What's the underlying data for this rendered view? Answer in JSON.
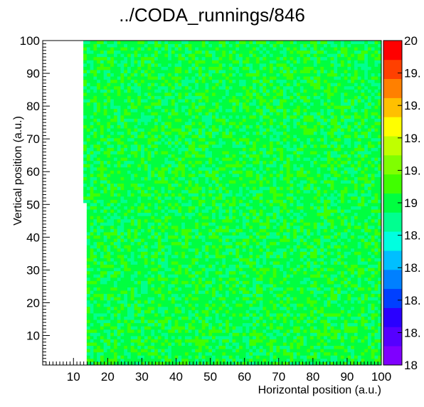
{
  "chart_data": {
    "type": "heatmap",
    "title": "../CODA_runnings/846",
    "xlabel": "Horizontal position (a.u.)",
    "ylabel": "Vertical position (a.u.)",
    "xlim": [
      1,
      100
    ],
    "ylim": [
      1,
      100
    ],
    "x_ticks": [
      "10",
      "20",
      "30",
      "40",
      "50",
      "60",
      "70",
      "80",
      "90",
      "100"
    ],
    "y_ticks": [
      "10",
      "20",
      "30",
      "40",
      "50",
      "60",
      "70",
      "80",
      "90",
      "100"
    ],
    "zlim": [
      18,
      20
    ],
    "z_ticks": [
      "18",
      "18.",
      "18.",
      "18.",
      "18.",
      "19",
      "19.",
      "19.",
      "19.",
      "19.",
      "20"
    ],
    "empty_region": {
      "x_below_upper_half": 12,
      "x_below_lower_half": 13,
      "y_split": 50
    },
    "typical_value": 19.0,
    "value_spread": 0.12,
    "palette": [
      "#7f00ff",
      "#5500ff",
      "#2a00ff",
      "#0040ff",
      "#0080ff",
      "#00bfff",
      "#00ffe0",
      "#00ff90",
      "#00ff40",
      "#40ff00",
      "#80ff00",
      "#c0ff00",
      "#ffff00",
      "#ffc000",
      "#ff8000",
      "#ff4000",
      "#ff0000"
    ]
  },
  "colors": {
    "frame": "#000000",
    "background": "#ffffff"
  }
}
